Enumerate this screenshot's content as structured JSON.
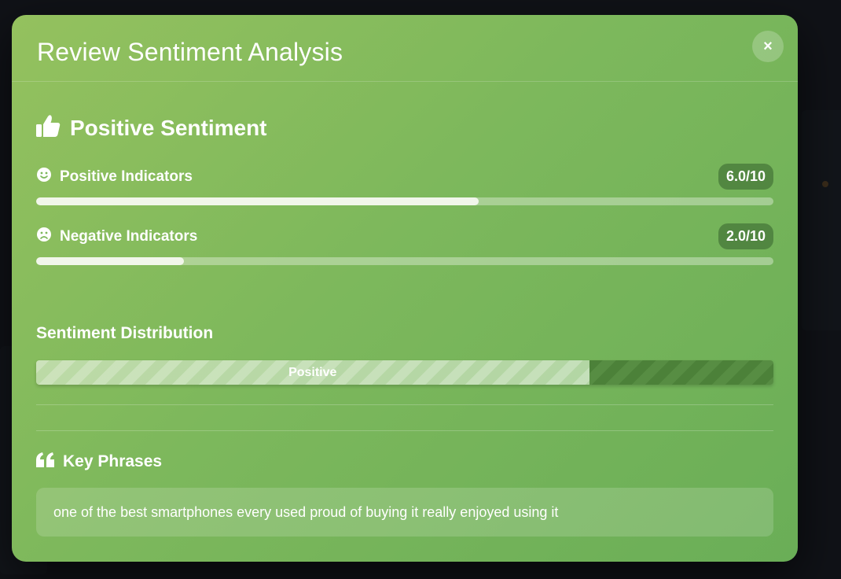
{
  "modal": {
    "title": "Review Sentiment Analysis",
    "close_label": "×"
  },
  "sentiment": {
    "label": "Positive Sentiment",
    "icon": "thumbs-up-icon"
  },
  "indicators": [
    {
      "label": "Positive Indicators",
      "score": "6.0/10",
      "fraction": 0.6,
      "icon": "smile-icon"
    },
    {
      "label": "Negative Indicators",
      "score": "2.0/10",
      "fraction": 0.2,
      "icon": "frown-icon"
    }
  ],
  "distribution": {
    "title": "Sentiment Distribution",
    "positive_label": "Positive",
    "positive_fraction": 0.75
  },
  "key_phrases": {
    "title": "Key Phrases",
    "icon": "quote-icon",
    "text": "one of the best smartphones every used proud of buying it really enjoyed using it"
  },
  "colors": {
    "modal_start": "#94c15e",
    "modal_end": "#6aae57",
    "negative_segment": "#4c8139"
  }
}
